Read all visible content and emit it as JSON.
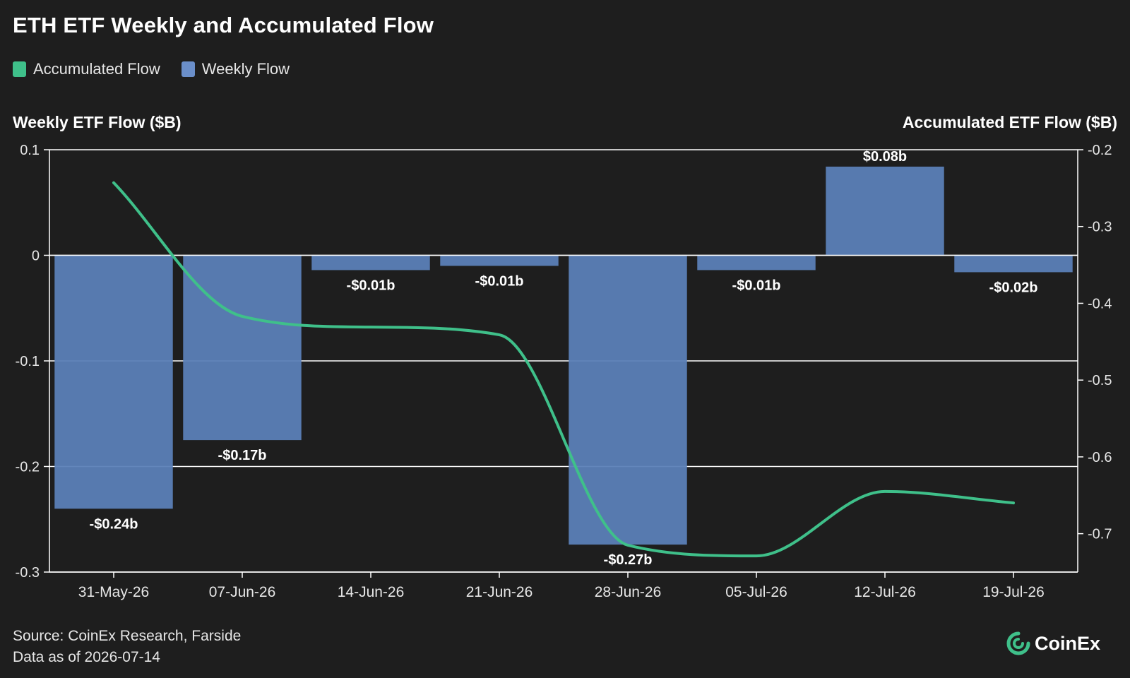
{
  "header": {
    "title": "ETH ETF Weekly and Accumulated Flow"
  },
  "legend": [
    {
      "label": "Accumulated Flow",
      "color": "#3fc08a"
    },
    {
      "label": "Weekly Flow",
      "color": "#6b8fca"
    }
  ],
  "chart_data": {
    "type": "bar",
    "categories": [
      "31-May-26",
      "07-Jun-26",
      "14-Jun-26",
      "21-Jun-26",
      "28-Jun-26",
      "05-Jul-26",
      "12-Jul-26",
      "19-Jul-26"
    ],
    "series": [
      {
        "name": "Weekly Flow",
        "type": "bar",
        "axis": "left",
        "color": "#5b80b7",
        "values": [
          -0.24,
          -0.175,
          -0.014,
          -0.01,
          -0.274,
          -0.014,
          0.084,
          -0.016
        ],
        "data_labels": [
          "-$0.24b",
          "-$0.17b",
          "-$0.01b",
          "-$0.01b",
          "-$0.27b",
          "-$0.01b",
          "$0.08b",
          "-$0.02b"
        ]
      },
      {
        "name": "Accumulated Flow",
        "type": "line",
        "axis": "right",
        "color": "#3fc08a",
        "values": [
          -0.243,
          -0.417,
          -0.431,
          -0.441,
          -0.715,
          -0.729,
          -0.645,
          -0.66
        ]
      }
    ],
    "ylabel_left": "Weekly ETF Flow ($B)",
    "ylabel_right": "Accumulated ETF Flow ($B)",
    "ylim_left": [
      -0.3,
      0.1
    ],
    "yticks_left": [
      {
        "value": 0.1,
        "label": "0.1"
      },
      {
        "value": 0,
        "label": "0"
      },
      {
        "value": -0.1,
        "label": "-0.1"
      },
      {
        "value": -0.2,
        "label": "-0.2"
      },
      {
        "value": -0.3,
        "label": "-0.3"
      }
    ],
    "ylim_right": [
      -0.75,
      -0.2
    ],
    "yticks_right": [
      {
        "value": -0.2,
        "label": "-0.2"
      },
      {
        "value": -0.3,
        "label": "-0.3"
      },
      {
        "value": -0.4,
        "label": "-0.4"
      },
      {
        "value": -0.5,
        "label": "-0.5"
      },
      {
        "value": -0.6,
        "label": "-0.6"
      },
      {
        "value": -0.7,
        "label": "-0.7"
      }
    ],
    "grid": true,
    "legend_position": "top-left"
  },
  "footer": {
    "source": "Source: CoinEx Research, Farside",
    "data_as_of": "Data as of 2026-07-14",
    "brand": "CoinEx",
    "brand_color": "#3fc08a"
  }
}
